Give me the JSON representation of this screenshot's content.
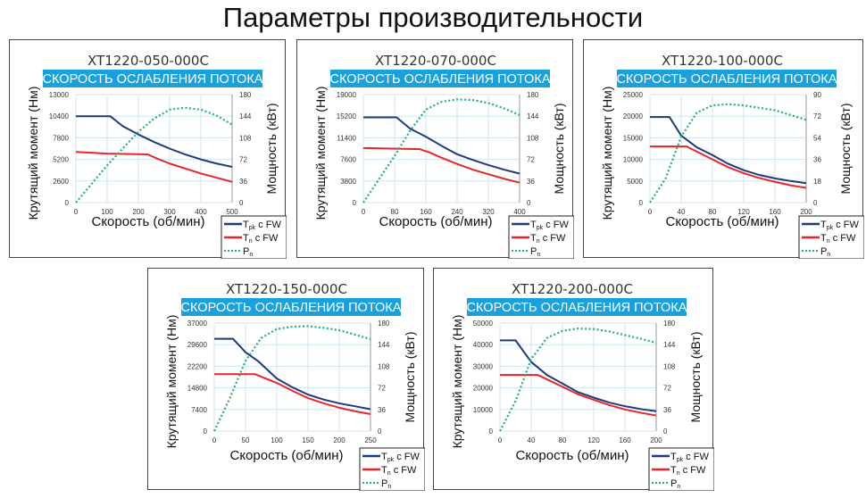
{
  "page_title": "Параметры производительности",
  "colors": {
    "tpk": "#1f3a7a",
    "tn": "#e8262a",
    "pn": "#22b07a",
    "banner": "#1aa0dc",
    "grid": "#cde5f2"
  },
  "chart_data": [
    {
      "type": "line",
      "title": "XT1220-050-000C",
      "subtitle": "СКОРОСТЬ ОСЛАБЛЕНИЯ ПОТОКА",
      "xlabel": "Скорость (об/мин)",
      "ylabel": "Крутящий момент (Нм)",
      "y2label": "Мощность (кВт)",
      "xlim": [
        0,
        500
      ],
      "ylim": [
        0,
        13000
      ],
      "y2lim": [
        0,
        180
      ],
      "xticks": [
        "0",
        "100",
        "200",
        "300",
        "400",
        "500"
      ],
      "yticks": [
        "0",
        "2600",
        "5200",
        "7800",
        "10400",
        "13000"
      ],
      "y2ticks": [
        "0",
        "36",
        "72",
        "108",
        "144",
        "180"
      ],
      "grid": true,
      "legend": "bottom-right",
      "series": [
        {
          "name": "Tpk с FW",
          "axis": "left",
          "x": [
            0,
            110,
            150,
            200,
            250,
            300,
            350,
            400,
            450,
            500
          ],
          "y": [
            10400,
            10400,
            9200,
            8200,
            7300,
            6500,
            5800,
            5200,
            4700,
            4300
          ]
        },
        {
          "name": "Tn с FW",
          "axis": "left",
          "x": [
            0,
            100,
            230,
            260,
            300,
            350,
            400,
            450,
            500
          ],
          "y": [
            6100,
            5900,
            5800,
            5300,
            4700,
            4100,
            3500,
            3000,
            2500
          ]
        },
        {
          "name": "Pn",
          "axis": "right",
          "x": [
            0,
            100,
            200,
            250,
            300,
            350,
            400,
            450,
            500
          ],
          "y": [
            0,
            62,
            118,
            140,
            155,
            158,
            155,
            145,
            130
          ]
        }
      ]
    },
    {
      "type": "line",
      "title": "XT1220-070-000C",
      "subtitle": "СКОРОСТЬ ОСЛАБЛЕНИЯ ПОТОКА",
      "xlabel": "Скорость (об/мин)",
      "ylabel": "Крутящий момент (Нм)",
      "y2label": "Мощность (кВт)",
      "xlim": [
        0,
        400
      ],
      "ylim": [
        0,
        19000
      ],
      "y2lim": [
        0,
        180
      ],
      "xticks": [
        "0",
        "80",
        "160",
        "240",
        "320",
        "400"
      ],
      "yticks": [
        "0",
        "3800",
        "7600",
        "11400",
        "15200",
        "19000"
      ],
      "y2ticks": [
        "0",
        "36",
        "72",
        "108",
        "144",
        "180"
      ],
      "grid": true,
      "legend": "bottom-right",
      "series": [
        {
          "name": "Tpk с FW",
          "axis": "left",
          "x": [
            0,
            85,
            120,
            160,
            200,
            240,
            280,
            320,
            360,
            400
          ],
          "y": [
            15000,
            15000,
            13000,
            11600,
            10000,
            8500,
            7500,
            6600,
            5800,
            5100
          ]
        },
        {
          "name": "Tn с FW",
          "axis": "left",
          "x": [
            0,
            145,
            170,
            200,
            240,
            280,
            320,
            360,
            400
          ],
          "y": [
            9600,
            9400,
            8800,
            7900,
            6800,
            5800,
            5000,
            4200,
            3500
          ]
        },
        {
          "name": "Pn",
          "axis": "right",
          "x": [
            0,
            80,
            120,
            160,
            200,
            240,
            280,
            320,
            360,
            400
          ],
          "y": [
            0,
            78,
            120,
            155,
            168,
            172,
            171,
            166,
            157,
            146
          ]
        }
      ]
    },
    {
      "type": "line",
      "title": "XT1220-100-000C",
      "subtitle": "СКОРОСТЬ ОСЛАБЛЕНИЯ ПОТОКА",
      "xlabel": "Скорость (об/мин)",
      "ylabel": "Крутящий момент (Нм)",
      "y2label": "Мощность (кВт)",
      "xlim": [
        0,
        200
      ],
      "ylim": [
        0,
        25000
      ],
      "y2lim": [
        0,
        90
      ],
      "xticks": [
        "0",
        "40",
        "80",
        "120",
        "160",
        "200"
      ],
      "yticks": [
        "0",
        "5000",
        "10000",
        "15000",
        "20000",
        "25000"
      ],
      "y2ticks": [
        "0",
        "18",
        "36",
        "54",
        "72",
        "90"
      ],
      "grid": true,
      "legend": "bottom-right",
      "series": [
        {
          "name": "Tpk с FW",
          "axis": "left",
          "x": [
            0,
            25,
            40,
            60,
            80,
            100,
            120,
            140,
            160,
            180,
            200
          ],
          "y": [
            19800,
            19800,
            15500,
            12800,
            11000,
            9000,
            7500,
            6400,
            5600,
            5000,
            4500
          ]
        },
        {
          "name": "Tn с FW",
          "axis": "left",
          "x": [
            0,
            47,
            60,
            80,
            100,
            120,
            140,
            160,
            180,
            200
          ],
          "y": [
            13000,
            13000,
            11800,
            10000,
            8200,
            6800,
            5700,
            4800,
            4000,
            3400
          ]
        },
        {
          "name": "Pn",
          "axis": "right",
          "x": [
            0,
            20,
            40,
            60,
            80,
            100,
            120,
            140,
            160,
            180,
            200
          ],
          "y": [
            0,
            20,
            55,
            75,
            81,
            82,
            81,
            79,
            77,
            73,
            69
          ]
        }
      ]
    },
    {
      "type": "line",
      "title": "XT1220-150-000C",
      "subtitle": "СКОРОСТЬ ОСЛАБЛЕНИЯ ПОТОКА",
      "xlabel": "Скорость (об/мин)",
      "ylabel": "Крутящий момент (Нм)",
      "y2label": "Мощность (кВт)",
      "xlim": [
        0,
        250
      ],
      "ylim": [
        0,
        37000
      ],
      "y2lim": [
        0,
        180
      ],
      "xticks": [
        "0",
        "50",
        "100",
        "150",
        "200",
        "250"
      ],
      "yticks": [
        "0",
        "7400",
        "14800",
        "22200",
        "29600",
        "37000"
      ],
      "y2ticks": [
        "0",
        "36",
        "72",
        "108",
        "144",
        "180"
      ],
      "grid": true,
      "legend": "bottom-right",
      "series": [
        {
          "name": "Tpk с FW",
          "axis": "left",
          "x": [
            0,
            30,
            50,
            70,
            100,
            125,
            150,
            175,
            200,
            225,
            250
          ],
          "y": [
            31600,
            31600,
            27000,
            24000,
            18000,
            15000,
            12500,
            10800,
            9500,
            8500,
            7500
          ]
        },
        {
          "name": "Tn с FW",
          "axis": "left",
          "x": [
            0,
            65,
            80,
            100,
            125,
            150,
            175,
            200,
            225,
            250
          ],
          "y": [
            19500,
            19500,
            18200,
            16500,
            13800,
            11300,
            9500,
            8000,
            6800,
            5800
          ]
        },
        {
          "name": "Pn",
          "axis": "right",
          "x": [
            0,
            25,
            50,
            75,
            100,
            125,
            150,
            175,
            200,
            225,
            250
          ],
          "y": [
            0,
            55,
            117,
            155,
            170,
            174,
            175,
            172,
            168,
            161,
            153
          ]
        }
      ]
    },
    {
      "type": "line",
      "title": "XT1220-200-000C",
      "subtitle": "СКОРОСТЬ ОСЛАБЛЕНИЯ ПОТОКА",
      "xlabel": "Скорость (об/мин)",
      "ylabel": "Крутящий момент (Нм)",
      "y2label": "Мощность (кВт)",
      "xlim": [
        0,
        200
      ],
      "ylim": [
        0,
        50000
      ],
      "y2lim": [
        0,
        180
      ],
      "xticks": [
        "0",
        "40",
        "80",
        "120",
        "160",
        "200"
      ],
      "yticks": [
        "0",
        "10000",
        "20000",
        "30000",
        "40000",
        "50000"
      ],
      "y2ticks": [
        "0",
        "36",
        "72",
        "108",
        "144",
        "180"
      ],
      "grid": true,
      "legend": "bottom-right",
      "series": [
        {
          "name": "Tpk с FW",
          "axis": "left",
          "x": [
            0,
            20,
            40,
            60,
            80,
            100,
            120,
            140,
            160,
            180,
            200
          ],
          "y": [
            42000,
            42000,
            32000,
            26000,
            22000,
            18000,
            15500,
            13200,
            11500,
            10200,
            9200
          ]
        },
        {
          "name": "Tn с FW",
          "axis": "left",
          "x": [
            0,
            48,
            60,
            80,
            100,
            120,
            140,
            160,
            180,
            200
          ],
          "y": [
            26000,
            26000,
            24000,
            20500,
            17000,
            14500,
            12000,
            10000,
            8500,
            7200
          ]
        },
        {
          "name": "Pn",
          "axis": "right",
          "x": [
            0,
            20,
            40,
            60,
            80,
            100,
            120,
            140,
            160,
            180,
            200
          ],
          "y": [
            0,
            50,
            120,
            155,
            167,
            171,
            170,
            166,
            160,
            154,
            147
          ]
        }
      ]
    }
  ],
  "legend_labels": [
    {
      "main": "T",
      "sub": "pk",
      "rest": " с FW"
    },
    {
      "main": "T",
      "sub": "n",
      "rest": " с FW"
    },
    {
      "main": "P",
      "sub": "n",
      "rest": ""
    }
  ]
}
